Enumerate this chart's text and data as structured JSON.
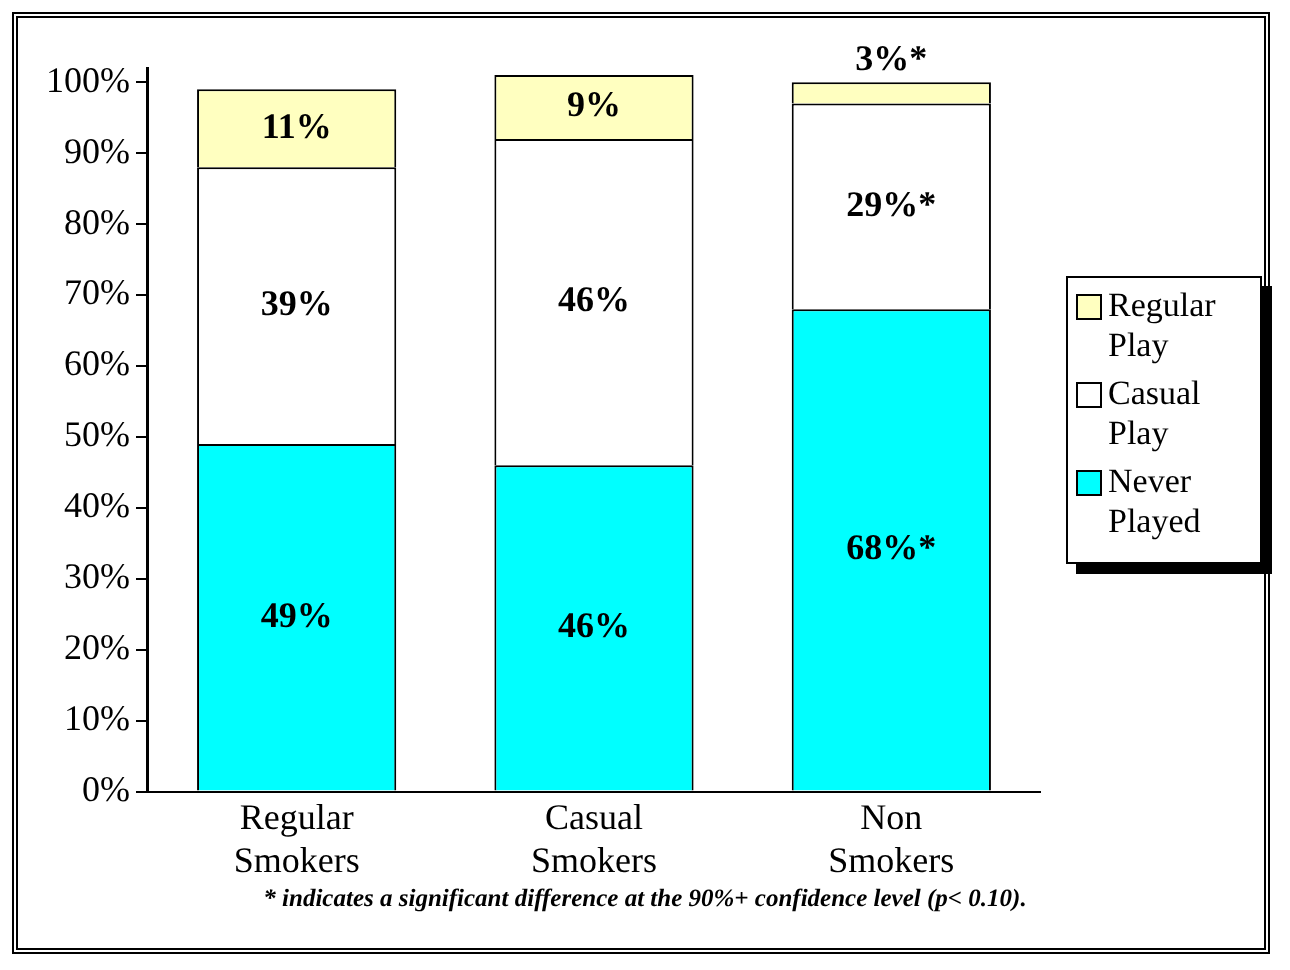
{
  "chart_data": {
    "type": "bar",
    "stacked": true,
    "categories": [
      "Regular Smokers",
      "Casual Smokers",
      "Non Smokers"
    ],
    "series": [
      {
        "name": "Never Played",
        "color": "#00ffff",
        "values": [
          49,
          46,
          68
        ],
        "value_labels": [
          "49%",
          "46%",
          "68%*"
        ]
      },
      {
        "name": "Casual Play",
        "color": "#ffffff",
        "values": [
          39,
          46,
          29
        ],
        "value_labels": [
          "39%",
          "46%",
          "29%*"
        ]
      },
      {
        "name": "Regular Play",
        "color": "#ffffc0",
        "values": [
          11,
          9,
          3
        ],
        "value_labels": [
          "11%",
          "9%",
          "3%*"
        ]
      }
    ],
    "ylim": [
      0,
      102
    ],
    "yticks": [
      {
        "value": 0,
        "label": "0%"
      },
      {
        "value": 10,
        "label": "10%"
      },
      {
        "value": 20,
        "label": "20%"
      },
      {
        "value": 30,
        "label": "30%"
      },
      {
        "value": 40,
        "label": "40%"
      },
      {
        "value": 50,
        "label": "50%"
      },
      {
        "value": 60,
        "label": "60%"
      },
      {
        "value": 70,
        "label": "70%"
      },
      {
        "value": 80,
        "label": "80%"
      },
      {
        "value": 90,
        "label": "90%"
      },
      {
        "value": 100,
        "label": "100%"
      }
    ],
    "grid": false,
    "legend": "right",
    "annotations": [
      "* indicates a significant difference at the 90%+ confidence level (p< 0.10)."
    ]
  }
}
